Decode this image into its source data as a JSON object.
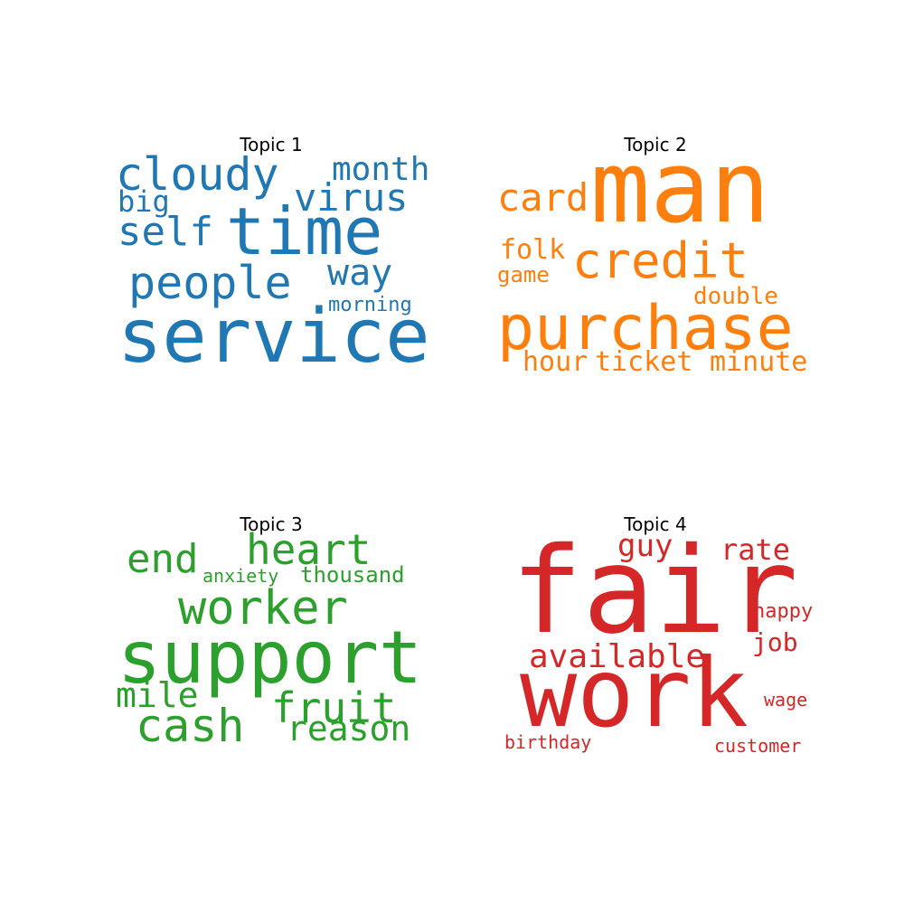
{
  "chart_data": [
    {
      "type": "wordcloud",
      "title": "Topic 1",
      "color": "#1f77b4",
      "words": [
        {
          "text": "service",
          "weight": 1.0
        },
        {
          "text": "time",
          "weight": 0.8
        },
        {
          "text": "people",
          "weight": 0.6
        },
        {
          "text": "cloudy",
          "weight": 0.58
        },
        {
          "text": "virus",
          "weight": 0.5
        },
        {
          "text": "self",
          "weight": 0.48
        },
        {
          "text": "way",
          "weight": 0.44
        },
        {
          "text": "month",
          "weight": 0.4
        },
        {
          "text": "big",
          "weight": 0.32
        },
        {
          "text": "morning",
          "weight": 0.25
        }
      ]
    },
    {
      "type": "wordcloud",
      "title": "Topic 2",
      "color": "#ff7f0e",
      "words": [
        {
          "text": "man",
          "weight": 1.0
        },
        {
          "text": "purchase",
          "weight": 0.8
        },
        {
          "text": "credit",
          "weight": 0.6
        },
        {
          "text": "card",
          "weight": 0.45
        },
        {
          "text": "folk",
          "weight": 0.32
        },
        {
          "text": "hour",
          "weight": 0.32
        },
        {
          "text": "ticket",
          "weight": 0.32
        },
        {
          "text": "minute",
          "weight": 0.32
        },
        {
          "text": "double",
          "weight": 0.28
        },
        {
          "text": "game",
          "weight": 0.27
        }
      ]
    },
    {
      "type": "wordcloud",
      "title": "Topic 3",
      "color": "#2ca02c",
      "words": [
        {
          "text": "support",
          "weight": 1.0
        },
        {
          "text": "worker",
          "weight": 0.7
        },
        {
          "text": "cash",
          "weight": 0.67
        },
        {
          "text": "heart",
          "weight": 0.6
        },
        {
          "text": "fruit",
          "weight": 0.57
        },
        {
          "text": "end",
          "weight": 0.55
        },
        {
          "text": "mile",
          "weight": 0.46
        },
        {
          "text": "reason",
          "weight": 0.46
        },
        {
          "text": "thousand",
          "weight": 0.32
        },
        {
          "text": "anxiety",
          "weight": 0.27
        }
      ]
    },
    {
      "type": "wordcloud",
      "title": "Topic 4",
      "color": "#d62728",
      "words": [
        {
          "text": "fair",
          "weight": 1.0
        },
        {
          "text": "work",
          "weight": 0.95
        },
        {
          "text": "available",
          "weight": 0.38
        },
        {
          "text": "guy",
          "weight": 0.35
        },
        {
          "text": "rate",
          "weight": 0.33
        },
        {
          "text": "job",
          "weight": 0.28
        },
        {
          "text": "happy",
          "weight": 0.23
        },
        {
          "text": "wage",
          "weight": 0.2
        },
        {
          "text": "customer",
          "weight": 0.2
        },
        {
          "text": "birthday",
          "weight": 0.2
        }
      ]
    }
  ]
}
